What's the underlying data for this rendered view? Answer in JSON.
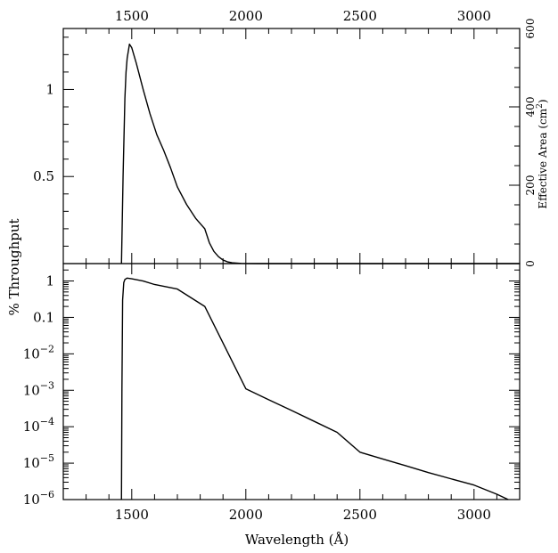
{
  "chart_data": [
    {
      "type": "line",
      "panel": "top",
      "xlabel": "Wavelength (Å)",
      "ylabel": "% Throughput",
      "y2label": "Effective Area (cm²)",
      "xlim": [
        1200,
        3200
      ],
      "ylim": [
        0,
        1.35
      ],
      "y2lim": [
        0,
        600
      ],
      "xticks": [
        1500,
        2000,
        2500,
        3000
      ],
      "xtick_labels": [
        "1500",
        "2000",
        "2500",
        "3000"
      ],
      "yticks": [
        0.5,
        1
      ],
      "ytick_labels": [
        "0.5",
        "1"
      ],
      "y2ticks": [
        0,
        200,
        400,
        600
      ],
      "y2tick_labels": [
        "0",
        "200",
        "400",
        "600"
      ],
      "grid": false,
      "series": [
        {
          "x": [
            1455,
            1462,
            1470,
            1475,
            1480,
            1490,
            1500,
            1520,
            1550,
            1580,
            1610,
            1640,
            1670,
            1700,
            1740,
            1780,
            1820,
            1840,
            1860,
            1880,
            1900,
            1920,
            1940,
            1960,
            1980,
            2000,
            2050,
            2100,
            2200,
            3200
          ],
          "y": [
            0,
            0.5,
            0.95,
            1.1,
            1.18,
            1.26,
            1.24,
            1.15,
            1.0,
            0.86,
            0.74,
            0.65,
            0.55,
            0.44,
            0.34,
            0.26,
            0.2,
            0.12,
            0.07,
            0.04,
            0.02,
            0.01,
            0.005,
            0.003,
            0.001,
            0.0005,
            0,
            0,
            0,
            0
          ]
        }
      ]
    },
    {
      "type": "line",
      "panel": "bottom",
      "xlabel": "Wavelength (Å)",
      "ylabel": "% Throughput",
      "xlim": [
        1200,
        3200
      ],
      "ylim": [
        1e-06,
        3
      ],
      "yscale": "log",
      "xticks": [
        1500,
        2000,
        2500,
        3000
      ],
      "xtick_labels": [
        "1500",
        "2000",
        "2500",
        "3000"
      ],
      "yticks": [
        1e-06,
        1e-05,
        0.0001,
        0.001,
        0.01,
        0.1,
        1
      ],
      "ytick_labels": [
        {
          "base": "10",
          "exp": "−6"
        },
        {
          "base": "10",
          "exp": "−5"
        },
        {
          "base": "10",
          "exp": "−4"
        },
        {
          "base": "10",
          "exp": "−3"
        },
        {
          "base": "10",
          "exp": "−2"
        },
        {
          "base": "0.1",
          "exp": ""
        },
        {
          "base": "1",
          "exp": ""
        }
      ],
      "grid": false,
      "series": [
        {
          "x": [
            1455,
            1457,
            1460,
            1465,
            1470,
            1480,
            1500,
            1550,
            1600,
            1700,
            1820,
            2000,
            2100,
            2200,
            2300,
            2400,
            2500,
            2600,
            2700,
            2800,
            2900,
            3000,
            3100,
            3150
          ],
          "y": [
            1e-06,
            0.001,
            0.3,
            0.9,
            1.1,
            1.2,
            1.15,
            1.0,
            0.8,
            0.6,
            0.2,
            0.0011,
            0.00055,
            0.00028,
            0.00014,
            7e-05,
            2e-05,
            1.3e-05,
            8.5e-06,
            5.5e-06,
            3.7e-06,
            2.5e-06,
            1.4e-06,
            1e-06
          ]
        }
      ]
    }
  ]
}
